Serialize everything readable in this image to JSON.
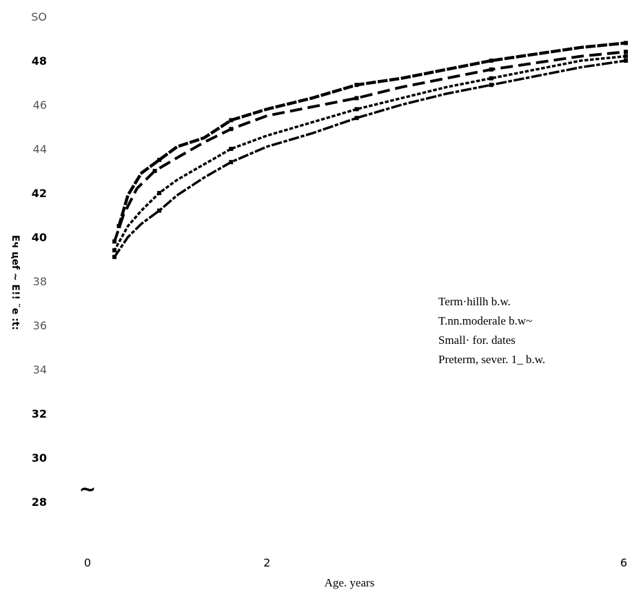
{
  "chart_data": {
    "type": "line",
    "xlabel": "Age. years",
    "ylabel": "Eч цef ~ E!! ¨e :t:",
    "xlim": [
      0,
      6
    ],
    "ylim": [
      27,
      51
    ],
    "x_ticks": [
      {
        "value": 0,
        "label": "0"
      },
      {
        "value": 2,
        "label": "2"
      },
      {
        "value": 6,
        "label": "6"
      }
    ],
    "y_ticks": [
      {
        "value": 50,
        "label": "SO",
        "style": "light"
      },
      {
        "value": 48,
        "label": "48",
        "style": "bold"
      },
      {
        "value": 46,
        "label": "46",
        "style": "light"
      },
      {
        "value": 44,
        "label": "44",
        "style": "light"
      },
      {
        "value": 42,
        "label": "42",
        "style": "bold"
      },
      {
        "value": 40,
        "label": "40",
        "style": "bold"
      },
      {
        "value": 38,
        "label": "38",
        "style": "light"
      },
      {
        "value": 36,
        "label": "36",
        "style": "light"
      },
      {
        "value": 34,
        "label": "34",
        "style": "light"
      },
      {
        "value": 32,
        "label": "32",
        "style": "bold"
      },
      {
        "value": 30,
        "label": "30",
        "style": "bold"
      },
      {
        "value": 28,
        "label": "28",
        "style": "bold"
      }
    ],
    "legend": {
      "placement": "right",
      "entries": [
        "Term·hillh b.w.",
        "T.nn.moderale b.w~",
        "Small· for. dates",
        "Preterm, sever. 1_ b.w."
      ]
    },
    "grid": false,
    "series": [
      {
        "style": "solid",
        "x": [
          0.35,
          0.45,
          0.6,
          0.8,
          1.0,
          1.3,
          1.6,
          2.0,
          2.5,
          3.0,
          3.5,
          4.0,
          4.5,
          5.0,
          5.5,
          6.0
        ],
        "y": [
          40.5,
          41.9,
          42.9,
          43.5,
          44.1,
          44.5,
          45.3,
          45.8,
          46.3,
          46.9,
          47.2,
          47.6,
          48.0,
          48.3,
          48.6,
          48.8
        ]
      },
      {
        "style": "dashed",
        "x": [
          0.3,
          0.4,
          0.55,
          0.75,
          1.0,
          1.3,
          1.6,
          2.0,
          2.5,
          3.0,
          3.5,
          4.0,
          4.5,
          5.0,
          5.5,
          6.0
        ],
        "y": [
          39.8,
          41.0,
          42.2,
          43.0,
          43.6,
          44.3,
          44.9,
          45.5,
          45.9,
          46.3,
          46.8,
          47.2,
          47.6,
          47.9,
          48.2,
          48.4
        ]
      },
      {
        "style": "dotted",
        "x": [
          0.3,
          0.45,
          0.6,
          0.8,
          1.0,
          1.3,
          1.6,
          2.0,
          2.5,
          3.0,
          3.5,
          4.0,
          4.5,
          5.0,
          5.5,
          6.0
        ],
        "y": [
          39.4,
          40.5,
          41.2,
          42.0,
          42.6,
          43.3,
          44.0,
          44.6,
          45.2,
          45.8,
          46.3,
          46.8,
          47.2,
          47.6,
          48.0,
          48.2
        ]
      },
      {
        "style": "dashdot",
        "x": [
          0.3,
          0.45,
          0.6,
          0.8,
          1.0,
          1.3,
          1.6,
          2.0,
          2.5,
          3.0,
          3.5,
          4.0,
          4.5,
          5.0,
          5.5,
          6.0
        ],
        "y": [
          39.1,
          40.0,
          40.6,
          41.2,
          41.9,
          42.7,
          43.4,
          44.1,
          44.7,
          45.4,
          46.0,
          46.5,
          46.9,
          47.3,
          47.7,
          48.0
        ]
      }
    ],
    "annotations": [
      {
        "text": "~",
        "x": 0.0,
        "y": 28.5
      }
    ]
  }
}
